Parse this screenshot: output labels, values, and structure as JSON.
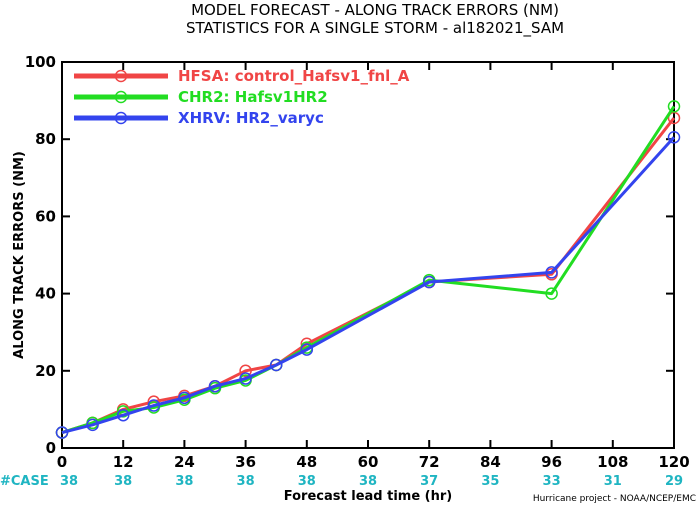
{
  "chart_data": {
    "type": "line",
    "title": "MODEL FORECAST - ALONG TRACK ERRORS (NM)",
    "subtitle": "STATISTICS FOR A SINGLE STORM - al182021_SAM",
    "xlabel": "Forecast lead time (hr)",
    "ylabel": "ALONG TRACK ERRORS (NM)",
    "xlim": [
      0,
      120
    ],
    "ylim": [
      0,
      100
    ],
    "x_ticks": [
      0,
      12,
      24,
      36,
      48,
      60,
      72,
      84,
      96,
      108,
      120
    ],
    "y_ticks": [
      0,
      20,
      40,
      60,
      80,
      100
    ],
    "legend_position": "top-left",
    "grid": false,
    "series": [
      {
        "name": "HFSA: control_Hafsv1_fnl_A",
        "color": "#f04545",
        "x": [
          0,
          6,
          12,
          18,
          24,
          30,
          36,
          42,
          48,
          72,
          96,
          120
        ],
        "y": [
          4,
          6.5,
          10,
          12,
          13.5,
          16,
          20,
          21.5,
          27,
          43,
          45,
          85.5
        ]
      },
      {
        "name": "CHR2: Hafsv1HR2",
        "color": "#22dd22",
        "x": [
          0,
          6,
          12,
          18,
          24,
          30,
          36,
          42,
          48,
          72,
          96,
          120
        ],
        "y": [
          4,
          6.5,
          9.5,
          10.5,
          12.5,
          15.5,
          17.5,
          21.5,
          26,
          43.5,
          40,
          88.5
        ]
      },
      {
        "name": "XHRV: HR2_varyc",
        "color": "#3344ee",
        "x": [
          0,
          6,
          12,
          18,
          24,
          30,
          36,
          42,
          48,
          72,
          96,
          120
        ],
        "y": [
          4,
          6,
          8.5,
          11,
          13,
          16,
          18,
          21.5,
          25.5,
          43,
          45.5,
          80.5
        ]
      }
    ],
    "cases": {
      "label": "#CASE",
      "x": [
        0,
        12,
        24,
        36,
        48,
        60,
        72,
        84,
        96,
        108,
        120
      ],
      "values": [
        "38",
        "38",
        "38",
        "38",
        "38",
        "38",
        "37",
        "35",
        "33",
        "31",
        "29"
      ]
    },
    "credit": "Hurricane project - NOAA/NCEP/EMC"
  }
}
